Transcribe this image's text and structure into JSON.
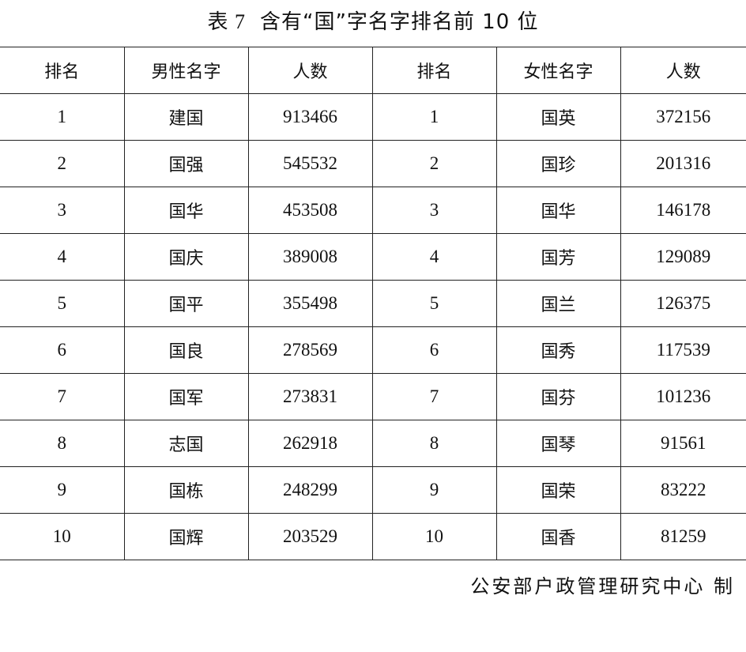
{
  "title": {
    "label": "表 7",
    "text": "含有“国”字名字排名前 10 位"
  },
  "headers": {
    "rank_male": "排名",
    "male_name": "男性名字",
    "count_male": "人数",
    "rank_female": "排名",
    "female_name": "女性名字",
    "count_female": "人数"
  },
  "rows": [
    {
      "rank_m": "1",
      "male": "建国",
      "count_m": "913466",
      "rank_f": "1",
      "female": "国英",
      "count_f": "372156"
    },
    {
      "rank_m": "2",
      "male": "国强",
      "count_m": "545532",
      "rank_f": "2",
      "female": "国珍",
      "count_f": "201316"
    },
    {
      "rank_m": "3",
      "male": "国华",
      "count_m": "453508",
      "rank_f": "3",
      "female": "国华",
      "count_f": "146178"
    },
    {
      "rank_m": "4",
      "male": "国庆",
      "count_m": "389008",
      "rank_f": "4",
      "female": "国芳",
      "count_f": "129089"
    },
    {
      "rank_m": "5",
      "male": "国平",
      "count_m": "355498",
      "rank_f": "5",
      "female": "国兰",
      "count_f": "126375"
    },
    {
      "rank_m": "6",
      "male": "国良",
      "count_m": "278569",
      "rank_f": "6",
      "female": "国秀",
      "count_f": "117539"
    },
    {
      "rank_m": "7",
      "male": "国军",
      "count_m": "273831",
      "rank_f": "7",
      "female": "国芬",
      "count_f": "101236"
    },
    {
      "rank_m": "8",
      "male": "志国",
      "count_m": "262918",
      "rank_f": "8",
      "female": "国琴",
      "count_f": "91561"
    },
    {
      "rank_m": "9",
      "male": "国栋",
      "count_m": "248299",
      "rank_f": "9",
      "female": "国荣",
      "count_f": "83222"
    },
    {
      "rank_m": "10",
      "male": "国辉",
      "count_m": "203529",
      "rank_f": "10",
      "female": "国香",
      "count_f": "81259"
    }
  ],
  "footer": "公安部户政管理研究中心 制"
}
